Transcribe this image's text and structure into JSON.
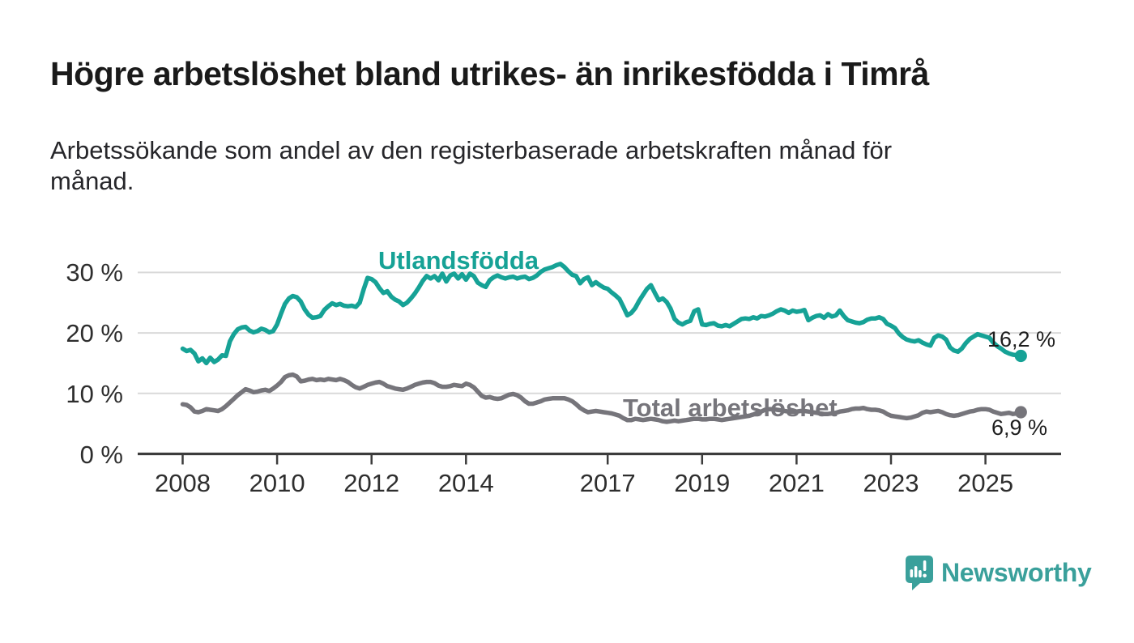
{
  "page": {
    "title": "Högre arbetslöshet bland utrikes- än inrikesfödda i Timrå",
    "subtitle": "Arbetssökande som andel av den registerbaserade arbetskraften månad för månad.",
    "subtitle_lines": [
      "Arbetssökande som andel av den registerbaserade arbetskraften månad för",
      "månad."
    ]
  },
  "branding": {
    "logo_text": "Newsworthy",
    "logo_icon": "bar-chart-speech-bubble-icon",
    "logo_color": "#3aa09b"
  },
  "colors": {
    "background": "#ffffff",
    "title_text": "#1a1a1a",
    "axis_text": "#2e2e2e",
    "axis_line": "#3c3c3c",
    "gridline": "#d9d9d9",
    "series_utlandsfodda": "#16a296",
    "series_total": "#76757b"
  },
  "chart_data": {
    "type": "line",
    "title": "Högre arbetslöshet bland utrikes- än inrikesfödda i Timrå",
    "subtitle": "Arbetssökande som andel av den registerbaserade arbetskraften månad för månad.",
    "xlabel": "",
    "ylabel": "",
    "unit": "%",
    "grid": "horizontal",
    "legend_position": "inline-labels",
    "x_origin_year": 2008,
    "x_ticks": [
      2008,
      2010,
      2012,
      2014,
      2017,
      2019,
      2021,
      2023,
      2025
    ],
    "y_ticks": [
      0,
      10,
      20,
      30
    ],
    "y_tick_suffix": " %",
    "xlim": [
      2007.05,
      2026.55
    ],
    "ylim": [
      0,
      33
    ],
    "series": [
      {
        "name": "Utlandsfödda",
        "color": "#16a296",
        "start_year": 2008,
        "step_months": 1,
        "end_value": 16.2,
        "end_label": "16,2 %",
        "values": [
          17.4,
          17.0,
          17.2,
          16.6,
          15.3,
          15.8,
          15.0,
          15.9,
          15.2,
          15.6,
          16.3,
          16.2,
          18.6,
          19.8,
          20.6,
          20.9,
          21.0,
          20.4,
          20.1,
          20.3,
          20.7,
          20.5,
          20.1,
          20.3,
          21.4,
          23.2,
          24.8,
          25.7,
          26.1,
          25.9,
          25.2,
          23.9,
          23.0,
          22.5,
          22.6,
          22.8,
          23.8,
          24.4,
          24.9,
          24.6,
          24.8,
          24.5,
          24.4,
          24.5,
          24.3,
          25.0,
          27.2,
          29.1,
          28.9,
          28.4,
          27.4,
          26.6,
          26.9,
          26.0,
          25.5,
          25.2,
          24.6,
          25.0,
          25.7,
          26.5,
          27.5,
          28.6,
          29.4,
          29.0,
          29.4,
          28.7,
          29.8,
          28.5,
          29.5,
          29.8,
          29.0,
          29.7,
          28.8,
          29.8,
          29.4,
          28.3,
          27.9,
          27.6,
          28.7,
          29.2,
          29.5,
          29.2,
          29.0,
          29.2,
          29.3,
          29.0,
          29.2,
          29.3,
          28.9,
          29.1,
          29.5,
          30.1,
          30.5,
          30.7,
          30.9,
          31.2,
          31.4,
          30.9,
          30.2,
          29.6,
          29.4,
          28.2,
          28.9,
          29.2,
          27.9,
          28.4,
          27.9,
          27.5,
          27.3,
          26.7,
          26.2,
          25.6,
          24.3,
          22.9,
          23.3,
          24.1,
          25.3,
          26.3,
          27.3,
          27.9,
          26.6,
          25.4,
          25.7,
          25.1,
          24.0,
          22.3,
          21.7,
          21.4,
          21.8,
          22.0,
          23.6,
          23.9,
          21.4,
          21.3,
          21.5,
          21.6,
          21.2,
          21.1,
          21.3,
          21.1,
          21.5,
          21.9,
          22.3,
          22.4,
          22.3,
          22.6,
          22.4,
          22.8,
          22.7,
          22.9,
          23.2,
          23.6,
          23.9,
          23.7,
          23.3,
          23.7,
          23.5,
          23.6,
          23.8,
          22.1,
          22.5,
          22.8,
          22.9,
          22.5,
          23.1,
          22.7,
          22.9,
          23.7,
          22.8,
          22.1,
          21.9,
          21.7,
          21.6,
          21.8,
          22.2,
          22.4,
          22.4,
          22.6,
          22.3,
          21.5,
          21.2,
          20.8,
          19.9,
          19.3,
          18.9,
          18.7,
          18.6,
          18.8,
          18.4,
          18.1,
          17.9,
          19.2,
          19.6,
          19.4,
          18.9,
          17.6,
          17.1,
          16.9,
          17.4,
          18.3,
          19.0,
          19.4,
          19.8,
          19.6,
          19.4,
          19.2,
          18.4,
          17.8,
          17.4,
          16.9,
          16.6,
          16.4,
          16.3,
          16.2
        ]
      },
      {
        "name": "Total arbetslöshet",
        "color": "#76757b",
        "start_year": 2008,
        "step_months": 1,
        "end_value": 6.9,
        "end_label": "6,9 %",
        "values": [
          8.2,
          8.1,
          7.7,
          7.0,
          6.9,
          7.1,
          7.4,
          7.3,
          7.2,
          7.1,
          7.4,
          7.9,
          8.5,
          9.1,
          9.7,
          10.2,
          10.7,
          10.5,
          10.2,
          10.3,
          10.5,
          10.6,
          10.4,
          10.8,
          11.3,
          11.9,
          12.7,
          13.0,
          13.1,
          12.8,
          12.0,
          12.1,
          12.3,
          12.4,
          12.2,
          12.3,
          12.2,
          12.4,
          12.3,
          12.2,
          12.4,
          12.2,
          11.9,
          11.4,
          11.0,
          10.8,
          11.1,
          11.4,
          11.6,
          11.8,
          11.9,
          11.6,
          11.2,
          11.0,
          10.8,
          10.7,
          10.6,
          10.8,
          11.1,
          11.4,
          11.6,
          11.8,
          11.9,
          11.9,
          11.7,
          11.3,
          11.1,
          11.1,
          11.2,
          11.4,
          11.3,
          11.2,
          11.6,
          11.4,
          11.0,
          10.3,
          9.6,
          9.3,
          9.4,
          9.2,
          9.1,
          9.2,
          9.5,
          9.8,
          9.9,
          9.7,
          9.3,
          8.7,
          8.3,
          8.3,
          8.5,
          8.7,
          9.0,
          9.1,
          9.2,
          9.2,
          9.2,
          9.2,
          9.0,
          8.7,
          8.2,
          7.6,
          7.2,
          6.9,
          7.0,
          7.1,
          7.0,
          6.9,
          6.8,
          6.7,
          6.5,
          6.3,
          5.9,
          5.6,
          5.6,
          5.8,
          5.7,
          5.6,
          5.7,
          5.8,
          5.7,
          5.6,
          5.4,
          5.3,
          5.4,
          5.5,
          5.4,
          5.5,
          5.6,
          5.7,
          5.8,
          5.8,
          5.7,
          5.7,
          5.8,
          5.8,
          5.7,
          5.6,
          5.7,
          5.8,
          5.9,
          6.0,
          6.1,
          6.2,
          6.3,
          6.5,
          6.8,
          7.0,
          7.3,
          7.4,
          7.4,
          7.3,
          7.2,
          7.1,
          7.0,
          7.0,
          7.0,
          7.1,
          7.1,
          7.0,
          6.9,
          6.8,
          6.7,
          6.6,
          6.6,
          6.7,
          6.8,
          7.0,
          7.1,
          7.2,
          7.4,
          7.5,
          7.5,
          7.6,
          7.4,
          7.3,
          7.3,
          7.2,
          7.0,
          6.6,
          6.3,
          6.2,
          6.1,
          6.0,
          5.9,
          6.0,
          6.2,
          6.4,
          6.8,
          7.0,
          6.9,
          7.0,
          7.1,
          6.9,
          6.6,
          6.4,
          6.3,
          6.4,
          6.6,
          6.8,
          7.0,
          7.1,
          7.3,
          7.4,
          7.4,
          7.3,
          7.0,
          6.8,
          6.6,
          6.7,
          6.8,
          6.6,
          6.7,
          6.9
        ]
      }
    ]
  }
}
